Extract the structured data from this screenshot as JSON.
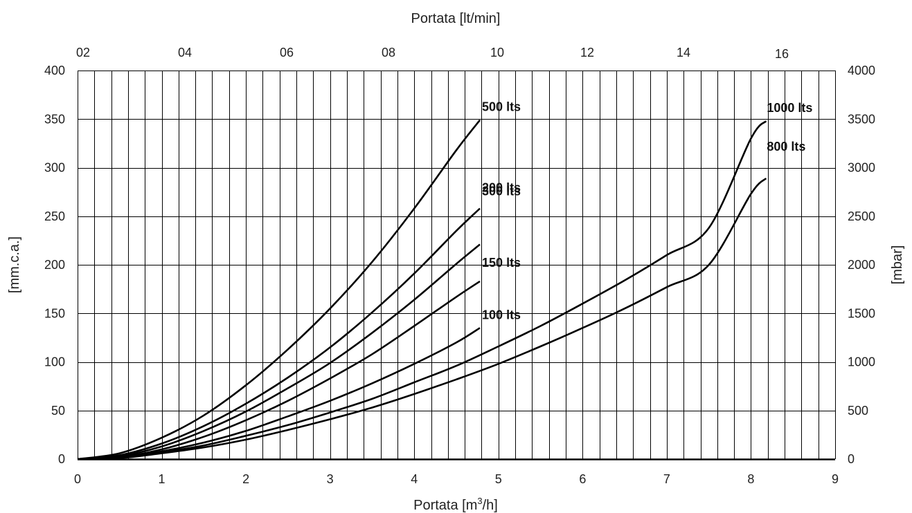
{
  "chart_data": {
    "type": "line",
    "top_axis": {
      "label": "Portata [lt/min]",
      "tick_labels": [
        "02",
        "04",
        "06",
        "08",
        "10",
        "12",
        "14",
        "16"
      ]
    },
    "x_axis": {
      "label_main": "Portata [m",
      "label_sup": "3",
      "label_end": "/h]",
      "min": 0,
      "max": 9,
      "ticks": [
        0,
        1,
        2,
        3,
        4,
        5,
        6,
        7,
        8,
        9
      ]
    },
    "y_left": {
      "label": "[mm.c.a.]",
      "min": 0,
      "max": 400,
      "ticks": [
        0,
        50,
        100,
        150,
        200,
        250,
        300,
        350,
        400
      ]
    },
    "y_right": {
      "label": "[mbar]",
      "ticks": [
        0,
        500,
        1000,
        1500,
        2000,
        2500,
        3000,
        3500,
        4000
      ]
    },
    "grid": true,
    "series": [
      {
        "name": "500 lts",
        "x": [
          0,
          0.5,
          1,
          1.5,
          2,
          2.5,
          3,
          3.5,
          4,
          4.5,
          4.78
        ],
        "y": [
          0,
          6,
          22,
          45,
          76,
          113,
          155,
          203,
          258,
          318,
          349
        ]
      },
      {
        "name": "300 lts",
        "x": [
          0,
          0.5,
          1,
          1.5,
          2,
          2.5,
          3,
          3.5,
          4,
          4.5,
          4.78
        ],
        "y": [
          0,
          4,
          16,
          34,
          57,
          84,
          115,
          151,
          191,
          235,
          258
        ]
      },
      {
        "name": "200 lts",
        "x": [
          0,
          0.5,
          1,
          1.5,
          2,
          2.5,
          3,
          3.5,
          4,
          4.5,
          4.78
        ],
        "y": [
          0,
          3,
          13,
          29,
          49,
          73,
          99,
          130,
          164,
          201,
          221
        ]
      },
      {
        "name": "150 lts",
        "x": [
          0,
          0.5,
          1,
          1.5,
          2,
          2.5,
          3,
          3.5,
          4,
          4.5,
          4.78
        ],
        "y": [
          0,
          2,
          10,
          23,
          40,
          60,
          83,
          108,
          137,
          167,
          183
        ]
      },
      {
        "name": "100 lts",
        "x": [
          0,
          0.5,
          1,
          1.5,
          2,
          2.5,
          3,
          3.5,
          4,
          4.5,
          4.78
        ],
        "y": [
          0,
          2,
          8,
          17,
          29,
          44,
          60,
          78,
          98,
          120,
          135
        ]
      },
      {
        "name": "1000 lts",
        "x": [
          0,
          0.5,
          1,
          1.5,
          2,
          2.5,
          3,
          3.5,
          4,
          4.5,
          5,
          5.5,
          6,
          6.5,
          7,
          7.5,
          8,
          8.18
        ],
        "y": [
          0,
          2,
          7,
          14,
          24,
          35,
          48,
          62,
          79,
          96,
          116,
          137,
          160,
          184,
          210,
          238,
          330,
          348
        ]
      },
      {
        "name": "800 lts",
        "x": [
          0,
          0.5,
          1,
          1.5,
          2,
          2.5,
          3,
          3.5,
          4,
          4.5,
          5,
          5.5,
          6,
          6.5,
          7,
          7.5,
          8,
          8.18
        ],
        "y": [
          0,
          1,
          6,
          12,
          20,
          30,
          41,
          53,
          67,
          82,
          98,
          116,
          135,
          155,
          177,
          200,
          273,
          289
        ]
      }
    ]
  }
}
